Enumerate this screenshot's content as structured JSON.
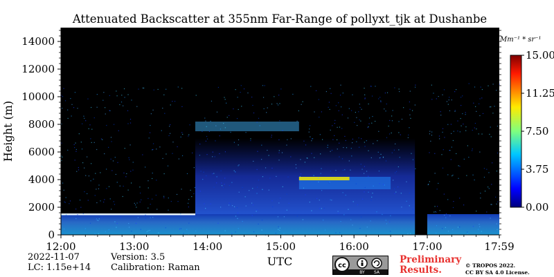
{
  "chart_data": {
    "type": "heatmap",
    "title": "Attenuated Backscatter at 355nm Far-Range of pollyxt_tjk at Dushanbe",
    "xlabel": "UTC",
    "ylabel": "Height (m)",
    "x_ticks": [
      "12:00",
      "13:00",
      "14:00",
      "15:00",
      "16:00",
      "17:00",
      "17:59"
    ],
    "y_ticks": [
      0,
      2000,
      4000,
      6000,
      8000,
      10000,
      12000,
      14000
    ],
    "ylim": [
      0,
      15000
    ],
    "xlim_hours": [
      12.0,
      17.983
    ],
    "colorbar": {
      "label": "Mm⁻¹ * sr⁻¹",
      "range": [
        0.0,
        15.0
      ],
      "ticks": [
        "0.00",
        "3.75",
        "7.50",
        "11.25",
        "15.00"
      ],
      "colormap": "jet"
    },
    "background_color": "#000000",
    "features": [
      {
        "name": "boundary layer",
        "start_utc": "12:00",
        "end_utc": "17:59",
        "height_m": [
          0,
          1500
        ]
      },
      {
        "name": "aerosol layer",
        "start_utc": "13:50",
        "end_utc": "16:50",
        "height_m": [
          1500,
          7000
        ]
      },
      {
        "name": "cirrus layer",
        "start_utc": "13:50",
        "end_utc": "15:15",
        "height_m": [
          7500,
          8200
        ]
      },
      {
        "name": "cloud layer",
        "start_utc": "15:15",
        "end_utc": "16:30",
        "height_m": [
          3300,
          4200
        ]
      },
      {
        "name": "no data gap",
        "start_utc": "16:50",
        "end_utc": "17:00",
        "height_m": [
          0,
          15000
        ]
      }
    ]
  },
  "info": {
    "date": "2022-11-07",
    "lc": "LC: 1.15e+14",
    "version": "Version: 3.5",
    "calibration": "Calibration: Raman"
  },
  "license": {
    "preliminary": "Preliminary Results.",
    "copyright_line1": "© TROPOS 2022.",
    "copyright_line2": "CC BY SA 4.0 License.",
    "badge_cc": "cc",
    "badge_by": "BY",
    "badge_sa": "SA"
  }
}
